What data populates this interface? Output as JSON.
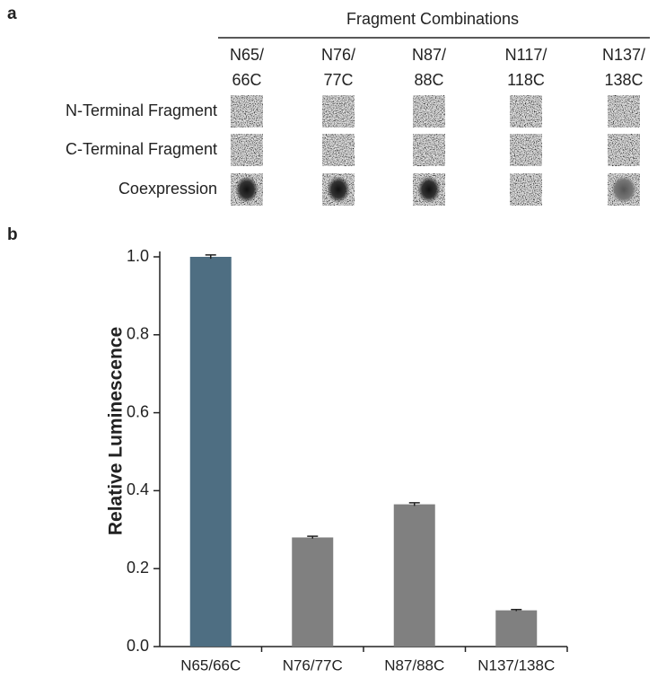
{
  "panel_a": {
    "label": "a",
    "header": "Fragment Combinations",
    "columns": [
      [
        "N65/",
        "66C"
      ],
      [
        "N76/",
        "77C"
      ],
      [
        "N87/",
        "88C"
      ],
      [
        "N117/",
        "118C"
      ],
      [
        "N137/",
        "138C"
      ]
    ],
    "rows": [
      "N-Terminal Fragment",
      "C-Terminal Fragment",
      "Coexpression"
    ]
  },
  "chart_data": {
    "type": "bar",
    "panel_label": "b",
    "y_label": "Relative Luminescence",
    "categories": [
      "N65/66C",
      "N76/77C",
      "N87/88C",
      "N137/138C"
    ],
    "values": [
      1.0,
      0.28,
      0.365,
      0.093
    ],
    "errors": [
      0.005,
      0.003,
      0.004,
      0.002
    ],
    "colors": [
      "#4e6e82",
      "#808080",
      "#808080",
      "#808080"
    ],
    "ylim": [
      0,
      1.0
    ],
    "yticks": [
      {
        "value": 0,
        "label": "0.0"
      },
      0.2,
      0.4,
      0.6,
      0.8,
      {
        "value": 1.0,
        "label": "1.0"
      }
    ]
  }
}
